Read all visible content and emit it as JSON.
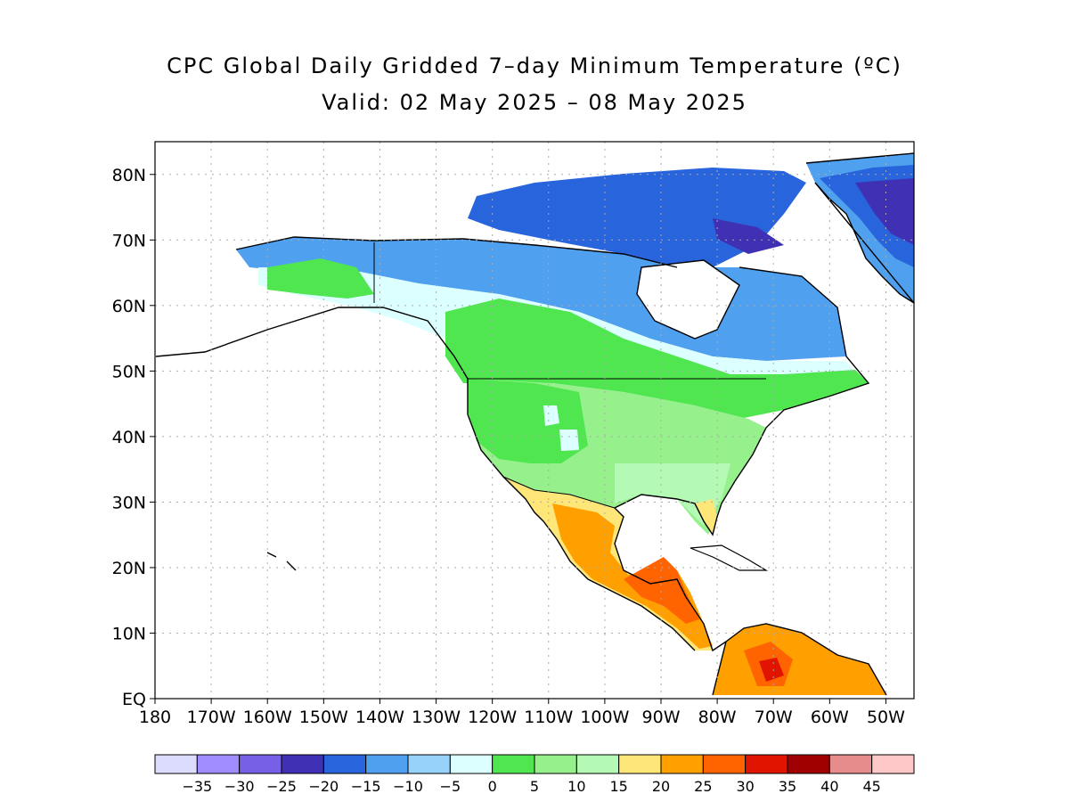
{
  "title": "CPC Global Daily Gridded 7–day Minimum Temperature (ºC)",
  "subtitle": "Valid: 02 May 2025 – 08 May 2025",
  "axes": {
    "lat_labels": [
      "80N",
      "70N",
      "60N",
      "50N",
      "40N",
      "30N",
      "20N",
      "10N",
      "EQ"
    ],
    "lon_labels": [
      "180",
      "170W",
      "160W",
      "150W",
      "140W",
      "130W",
      "120W",
      "110W",
      "100W",
      "90W",
      "80W",
      "70W",
      "60W",
      "50W"
    ],
    "lat_values": [
      80,
      70,
      60,
      50,
      40,
      30,
      20,
      10,
      0
    ],
    "lon_values": [
      -180,
      -170,
      -160,
      -150,
      -140,
      -130,
      -120,
      -110,
      -100,
      -90,
      -80,
      -70,
      -60,
      -50
    ]
  },
  "map_extent": {
    "lon_min": -180,
    "lon_max": -45,
    "lat_min": 0,
    "lat_max": 85
  },
  "legend": {
    "labels": [
      "-35",
      "-30",
      "-25",
      "-20",
      "-15",
      "-10",
      "-5",
      "0",
      "5",
      "10",
      "15",
      "20",
      "25",
      "30",
      "35",
      "40",
      "45"
    ],
    "colors": [
      "#dcdcff",
      "#a08cff",
      "#7860e6",
      "#4030b4",
      "#2864dc",
      "#50a0f0",
      "#96d2fa",
      "#dcffff",
      "#50e650",
      "#96f08c",
      "#b4fab4",
      "#ffe678",
      "#ffa000",
      "#ff6400",
      "#e11400",
      "#a00000",
      "#e68c8c",
      "#ffc8c8"
    ]
  },
  "regions": [
    {
      "name": "greenland-ice",
      "color": "#2864dc"
    },
    {
      "name": "arctic-archipelago",
      "color": "#2864dc"
    },
    {
      "name": "canada-tundra",
      "color": "#50a0f0"
    },
    {
      "name": "boreal",
      "color": "#dcffff"
    },
    {
      "name": "conus",
      "color": "#96f08c"
    },
    {
      "name": "mexico",
      "color": "#ffa000"
    },
    {
      "name": "south-america",
      "color": "#ffa000"
    }
  ]
}
